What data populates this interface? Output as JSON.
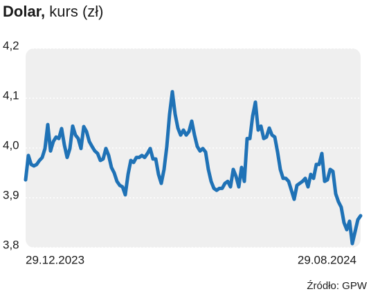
{
  "chart_data": {
    "type": "line",
    "title": "Dolar,",
    "subtitle": "kurs (zł)",
    "source": "Źródło: GPW",
    "categories": [
      "29.12.2023",
      null,
      null,
      null,
      null,
      null,
      null,
      null,
      null,
      null,
      null,
      null,
      null,
      null,
      null,
      null,
      null,
      null,
      null,
      null,
      null,
      null,
      null,
      null,
      null,
      null,
      null,
      null,
      null,
      null,
      null,
      null,
      null,
      null,
      null,
      null,
      null,
      null,
      null,
      null,
      null,
      null,
      null,
      null,
      null,
      null,
      null,
      null,
      null,
      null,
      null,
      null,
      null,
      null,
      null,
      null,
      null,
      null,
      null,
      null,
      null,
      null,
      null,
      null,
      null,
      null,
      null,
      null,
      null,
      null,
      null,
      null,
      null,
      null,
      null,
      null,
      null,
      null,
      null,
      null,
      null,
      null,
      null,
      null,
      null,
      null,
      null,
      null,
      null,
      null,
      null,
      null,
      null,
      null,
      null,
      null,
      null,
      null,
      null,
      null,
      null,
      null,
      null,
      null,
      null,
      null,
      null,
      null,
      null,
      null,
      null,
      null,
      null,
      null,
      null,
      null,
      null,
      null,
      null,
      null,
      null,
      "29.08.2024"
    ],
    "values": [
      3.936,
      3.985,
      3.967,
      3.964,
      3.967,
      3.975,
      3.981,
      3.999,
      4.047,
      3.994,
      4.013,
      4.022,
      4.019,
      4.039,
      4.006,
      3.981,
      3.999,
      4.044,
      4.026,
      4.019,
      3.999,
      4.043,
      4.033,
      4.013,
      4.003,
      3.994,
      3.989,
      3.975,
      3.978,
      3.999,
      3.985,
      3.961,
      3.95,
      3.933,
      3.925,
      3.922,
      3.906,
      3.947,
      3.975,
      3.971,
      3.981,
      3.981,
      3.985,
      3.981,
      3.989,
      3.999,
      3.978,
      3.978,
      3.947,
      3.929,
      3.957,
      4.003,
      4.068,
      4.113,
      4.068,
      4.04,
      4.026,
      4.036,
      4.026,
      4.033,
      4.054,
      4.026,
      4.003,
      3.994,
      3.999,
      3.992,
      3.957,
      3.933,
      3.919,
      3.915,
      3.919,
      3.919,
      3.929,
      3.933,
      3.922,
      3.957,
      3.943,
      3.922,
      3.961,
      3.933,
      4.019,
      4.019,
      4.064,
      4.092,
      4.036,
      4.044,
      4.019,
      4.022,
      4.04,
      4.026,
      4.022,
      3.992,
      3.957,
      3.939,
      3.939,
      3.933,
      3.915,
      3.897,
      3.925,
      3.929,
      3.933,
      3.939,
      3.922,
      3.947,
      3.939,
      3.967,
      3.967,
      3.989,
      3.933,
      3.936,
      3.957,
      3.953,
      3.908,
      3.892,
      3.881,
      3.85,
      3.836,
      3.853,
      3.808,
      3.832,
      3.856,
      3.864
    ],
    "color": "#1f72b6",
    "ylim": [
      3.8,
      4.2
    ],
    "yticks": [
      {
        "value": 3.8,
        "label": "3,8"
      },
      {
        "value": 3.9,
        "label": "3,9"
      },
      {
        "value": 4.0,
        "label": "4,0"
      },
      {
        "value": 4.1,
        "label": "4,1"
      },
      {
        "value": 4.2,
        "label": "4,2"
      }
    ],
    "grid": true
  }
}
